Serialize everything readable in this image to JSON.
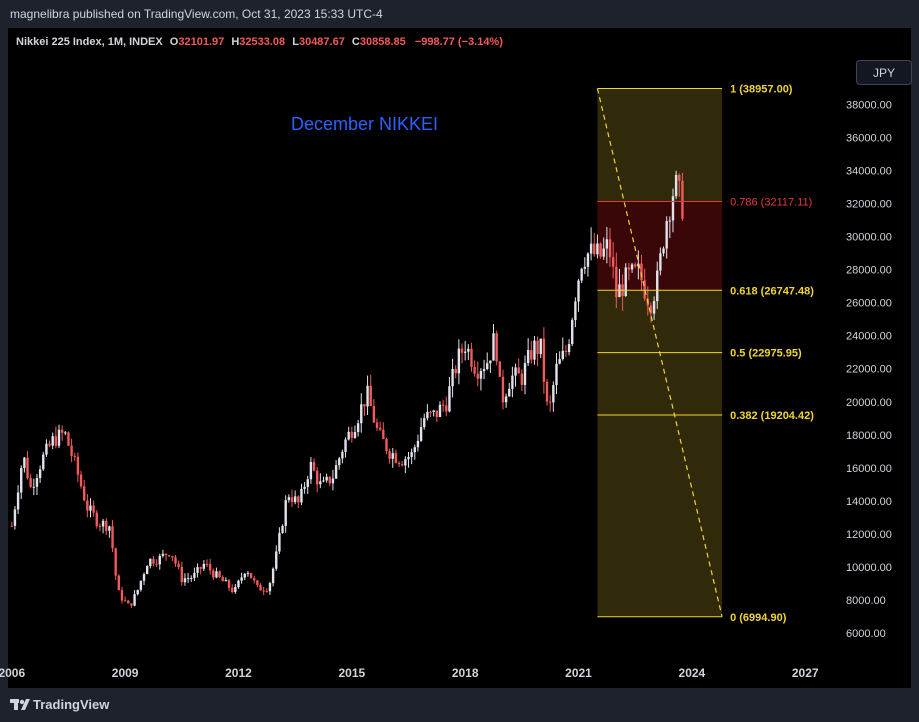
{
  "header": {
    "published": "magnelibra published on TradingView.com, Oct 31, 2023 15:33 UTC-4"
  },
  "legend": {
    "symbol": "Nikkei 225 Index, 1M, INDEX",
    "o_label": "O",
    "o_value": "32101.97",
    "h_label": "H",
    "h_value": "32533.08",
    "l_label": "L",
    "l_value": "30487.67",
    "c_label": "C",
    "c_value": "30858.85",
    "change": "−998.77 (−3.14%)"
  },
  "currency_button": "JPY",
  "footer": {
    "brand": "TradingView"
  },
  "colors": {
    "up": "#e0e3eb",
    "down": "#f05a5a",
    "fib": "#f0d432",
    "fib786": "#e03a3a",
    "annotation": "#2962ff"
  },
  "chart_data": {
    "type": "candlestick",
    "title": "December NIKKEI",
    "y_axis": {
      "ticks": [
        6000,
        8000,
        10000,
        12000,
        14000,
        16000,
        18000,
        20000,
        22000,
        24000,
        26000,
        28000,
        30000,
        32000,
        34000,
        36000,
        38000
      ],
      "tick_labels": [
        "6000.00",
        "8000.00",
        "10000.00",
        "12000.00",
        "14000.00",
        "16000.00",
        "18000.00",
        "20000.00",
        "22000.00",
        "24000.00",
        "26000.00",
        "28000.00",
        "30000.00",
        "32000.00",
        "34000.00",
        "36000.00",
        "38000.00"
      ],
      "range": [
        4500,
        40800
      ]
    },
    "x_axis": {
      "ticks": [
        2006,
        2009,
        2012,
        2015,
        2018,
        2021,
        2024,
        2027
      ],
      "tick_labels": [
        "2006",
        "2009",
        "2012",
        "2015",
        "2018",
        "2021",
        "2024",
        "2027"
      ],
      "range": [
        2005.9,
        2028.0
      ]
    },
    "fib_levels": [
      {
        "ratio": 1,
        "value": 38957.0,
        "label": "1 (38957.00)"
      },
      {
        "ratio": 0.786,
        "value": 32117.11,
        "label": "0.786 (32117.11)"
      },
      {
        "ratio": 0.618,
        "value": 26747.48,
        "label": "0.618 (26747.48)"
      },
      {
        "ratio": 0.5,
        "value": 22975.95,
        "label": "0.5 (22975.95)"
      },
      {
        "ratio": 0.382,
        "value": 19204.42,
        "label": "0.382 (19204.42)"
      },
      {
        "ratio": 0,
        "value": 6994.9,
        "label": "0 (6994.90)"
      }
    ],
    "fib_time_range": [
      2021.5,
      2024.8
    ],
    "trend_line": {
      "from": [
        2021.5,
        38957.0
      ],
      "to": [
        2024.8,
        6994.9
      ]
    },
    "price_path": [
      [
        2006.0,
        12500
      ],
      [
        2006.3,
        16800
      ],
      [
        2006.5,
        14800
      ],
      [
        2006.8,
        16500
      ],
      [
        2007.1,
        17700
      ],
      [
        2007.4,
        18100
      ],
      [
        2007.7,
        16000
      ],
      [
        2008.0,
        13600
      ],
      [
        2008.3,
        12700
      ],
      [
        2008.6,
        12500
      ],
      [
        2008.8,
        8500
      ],
      [
        2009.1,
        7600
      ],
      [
        2009.3,
        8400
      ],
      [
        2009.6,
        10400
      ],
      [
        2009.9,
        10500
      ],
      [
        2010.2,
        11000
      ],
      [
        2010.5,
        9300
      ],
      [
        2010.8,
        9400
      ],
      [
        2011.1,
        10200
      ],
      [
        2011.3,
        9700
      ],
      [
        2011.6,
        9100
      ],
      [
        2011.9,
        8500
      ],
      [
        2012.2,
        10000
      ],
      [
        2012.5,
        8700
      ],
      [
        2012.8,
        8800
      ],
      [
        2013.0,
        10700
      ],
      [
        2013.3,
        14500
      ],
      [
        2013.6,
        13800
      ],
      [
        2013.9,
        16200
      ],
      [
        2014.2,
        14800
      ],
      [
        2014.5,
        15500
      ],
      [
        2014.8,
        17500
      ],
      [
        2015.1,
        18800
      ],
      [
        2015.4,
        20500
      ],
      [
        2015.7,
        18000
      ],
      [
        2016.0,
        17000
      ],
      [
        2016.3,
        16500
      ],
      [
        2016.6,
        16800
      ],
      [
        2016.9,
        19000
      ],
      [
        2017.2,
        19200
      ],
      [
        2017.5,
        20000
      ],
      [
        2017.8,
        22500
      ],
      [
        2018.0,
        23500
      ],
      [
        2018.3,
        22000
      ],
      [
        2018.6,
        22500
      ],
      [
        2018.8,
        24000
      ],
      [
        2018.95,
        20000
      ],
      [
        2019.2,
        21500
      ],
      [
        2019.5,
        21500
      ],
      [
        2019.8,
        23300
      ],
      [
        2020.0,
        23200
      ],
      [
        2020.2,
        19000
      ],
      [
        2020.4,
        21900
      ],
      [
        2020.7,
        23200
      ],
      [
        2020.9,
        26400
      ],
      [
        2021.1,
        28800
      ],
      [
        2021.3,
        29000
      ],
      [
        2021.6,
        28800
      ],
      [
        2021.8,
        29500
      ],
      [
        2022.0,
        26500
      ],
      [
        2022.3,
        27500
      ],
      [
        2022.6,
        27800
      ],
      [
        2022.9,
        26000
      ],
      [
        2023.1,
        27400
      ],
      [
        2023.3,
        30800
      ],
      [
        2023.55,
        33200
      ],
      [
        2023.75,
        31900
      ],
      [
        2023.83,
        30859
      ]
    ]
  }
}
